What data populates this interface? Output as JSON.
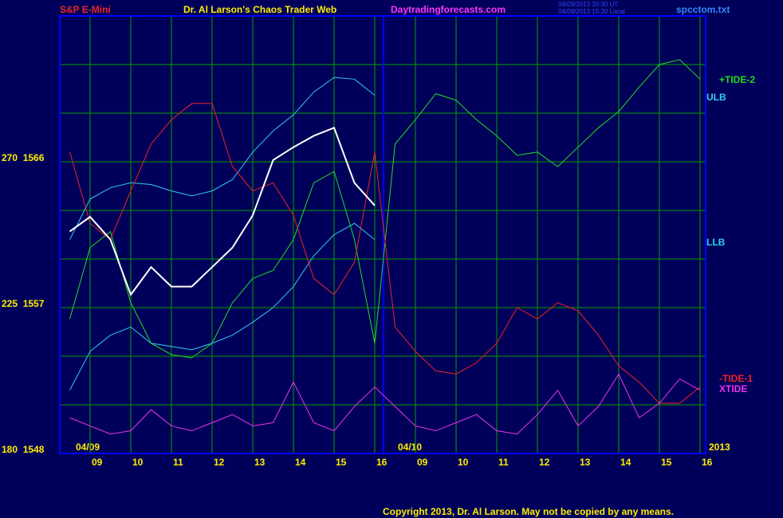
{
  "chart_data": {
    "type": "line",
    "header": {
      "symbol": "S&P E-Mini",
      "title": "Dr. Al Larson's Chaos Trader Web",
      "site": "Daytradingforecasts.com",
      "time_ut": "04/09/2013 20:30 UT",
      "time_local": "04/09/2013 15:30 Local",
      "file": "spcctom.txt"
    },
    "dates": [
      "04/09",
      "04/10",
      "2013"
    ],
    "copyright": "Copyright 2013, Dr. Al Larson. May not be copied by any means.",
    "categories": [
      null,
      "09",
      null,
      "10",
      null,
      "11",
      null,
      "12",
      null,
      "13",
      null,
      "14",
      null,
      "15",
      null,
      "16",
      null,
      "09",
      null,
      "10",
      null,
      "11",
      null,
      "12",
      null,
      "13",
      null,
      "14",
      null,
      "15",
      null,
      "16"
    ],
    "ylim": [
      1548,
      1575
    ],
    "yticks": [
      {
        "value": 1548,
        "label": "180  1548"
      },
      {
        "value": 1557,
        "label": "225  1557"
      },
      {
        "value": 1566,
        "label": "270  1566"
      }
    ],
    "grid": true,
    "price": {
      "color": "#ffffff",
      "values": [
        1561.7,
        1562.6,
        1561.2,
        1557.8,
        1559.5,
        1558.3,
        1558.3,
        1559.5,
        1560.7,
        1562.7,
        1566.1,
        1566.9,
        1567.6,
        1568.1,
        1564.7,
        1563.3,
        null,
        null,
        null,
        null,
        null,
        null,
        null,
        null,
        null,
        null,
        null,
        null,
        null,
        null,
        null,
        null
      ]
    },
    "series": [
      {
        "name": "+TIDE-2",
        "color": "#22dd22",
        "values": [
          1556.3,
          1560.7,
          1561.7,
          1557.3,
          1554.8,
          1554.1,
          1553.9,
          1554.8,
          1557.3,
          1558.8,
          1559.3,
          1561.2,
          1564.7,
          1565.4,
          1561.2,
          1554.8,
          1567.1,
          1568.6,
          1570.2,
          1569.8,
          1568.6,
          1567.6,
          1566.4,
          1566.6,
          1565.7,
          1566.9,
          1568.1,
          1569.1,
          1570.6,
          1572.0,
          1572.3,
          1571.1
        ]
      },
      {
        "name": "ULB",
        "color": "#33ccee",
        "values": [
          1561.2,
          1563.7,
          1564.4,
          1564.7,
          1564.6,
          1564.2,
          1563.9,
          1564.2,
          1564.9,
          1566.6,
          1567.9,
          1568.9,
          1570.3,
          1571.2,
          1571.1,
          1570.1,
          null,
          null,
          null,
          null,
          null,
          null,
          null,
          null,
          null,
          null,
          null,
          null,
          null,
          null,
          null,
          null
        ]
      },
      {
        "name": "LLB",
        "color": "#33ccee",
        "values": [
          1551.9,
          1554.3,
          1555.3,
          1555.8,
          1554.8,
          1554.6,
          1554.4,
          1554.8,
          1555.3,
          1556.1,
          1557.0,
          1558.3,
          1560.2,
          1561.5,
          1562.2,
          1561.2,
          null,
          null,
          null,
          null,
          null,
          null,
          null,
          null,
          null,
          null,
          null,
          null,
          null,
          null,
          null,
          null
        ]
      },
      {
        "name": "-TIDE-1",
        "color": "#ee2222",
        "values": [
          1566.6,
          1562.2,
          1561.2,
          1564.2,
          1567.1,
          1568.6,
          1569.6,
          1569.6,
          1565.7,
          1564.2,
          1564.7,
          1562.7,
          1558.8,
          1557.8,
          1559.8,
          1566.6,
          1555.8,
          1554.3,
          1553.1,
          1552.9,
          1553.6,
          1554.8,
          1557.0,
          1556.3,
          1557.3,
          1556.8,
          1555.3,
          1553.4,
          1552.4,
          1551.1,
          1551.1,
          1552.1
        ]
      },
      {
        "name": "XTIDE",
        "color": "#ee33ee",
        "values": [
          1550.2,
          1549.7,
          1549.2,
          1549.4,
          1550.7,
          1549.7,
          1549.4,
          1549.9,
          1550.4,
          1549.7,
          1549.9,
          1552.4,
          1549.9,
          1549.4,
          1550.9,
          1552.1,
          1550.9,
          1549.7,
          1549.4,
          1549.9,
          1550.4,
          1549.4,
          1549.2,
          1550.4,
          1551.9,
          1549.7,
          1550.9,
          1552.9,
          1550.2,
          1551.1,
          1552.6,
          1551.9
        ]
      }
    ]
  }
}
